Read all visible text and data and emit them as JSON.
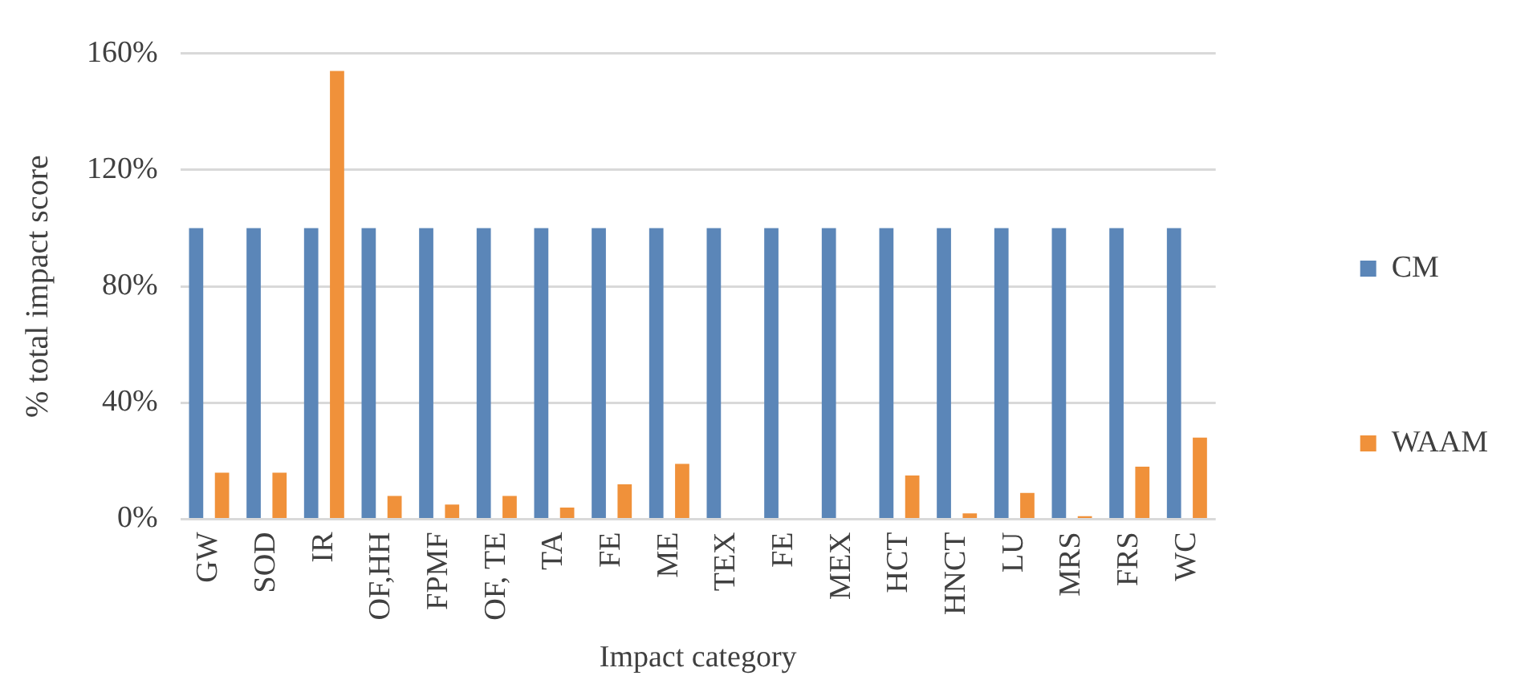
{
  "chart_data": {
    "type": "bar",
    "xlabel": "Impact category",
    "ylabel": "% total impact score",
    "categories": [
      "GW",
      "SOD",
      "IR",
      "OF,HH",
      "FPMF",
      "OF, TE",
      "TA",
      "FE",
      "ME",
      "TEX",
      "FE",
      "MEX",
      "HCT",
      "HNCT",
      "LU",
      "MRS",
      "FRS",
      "WC"
    ],
    "series": [
      {
        "name": "CM",
        "color": "#5b86b8",
        "values": [
          100,
          100,
          100,
          100,
          100,
          100,
          100,
          100,
          100,
          100,
          100,
          100,
          100,
          100,
          100,
          100,
          100,
          100
        ]
      },
      {
        "name": "WAAM",
        "color": "#f0913a",
        "values": [
          16,
          16,
          154,
          8,
          5,
          8,
          4,
          12,
          19,
          0,
          0,
          0,
          15,
          2,
          9,
          1,
          18,
          28
        ]
      }
    ],
    "ylim": [
      0,
      160
    ],
    "yticks": [
      {
        "value": 0,
        "label": "0%"
      },
      {
        "value": 40,
        "label": "40%"
      },
      {
        "value": 80,
        "label": "80%"
      },
      {
        "value": 120,
        "label": "120%"
      },
      {
        "value": 160,
        "label": "160%"
      }
    ],
    "grid": "y",
    "legend": "right"
  }
}
